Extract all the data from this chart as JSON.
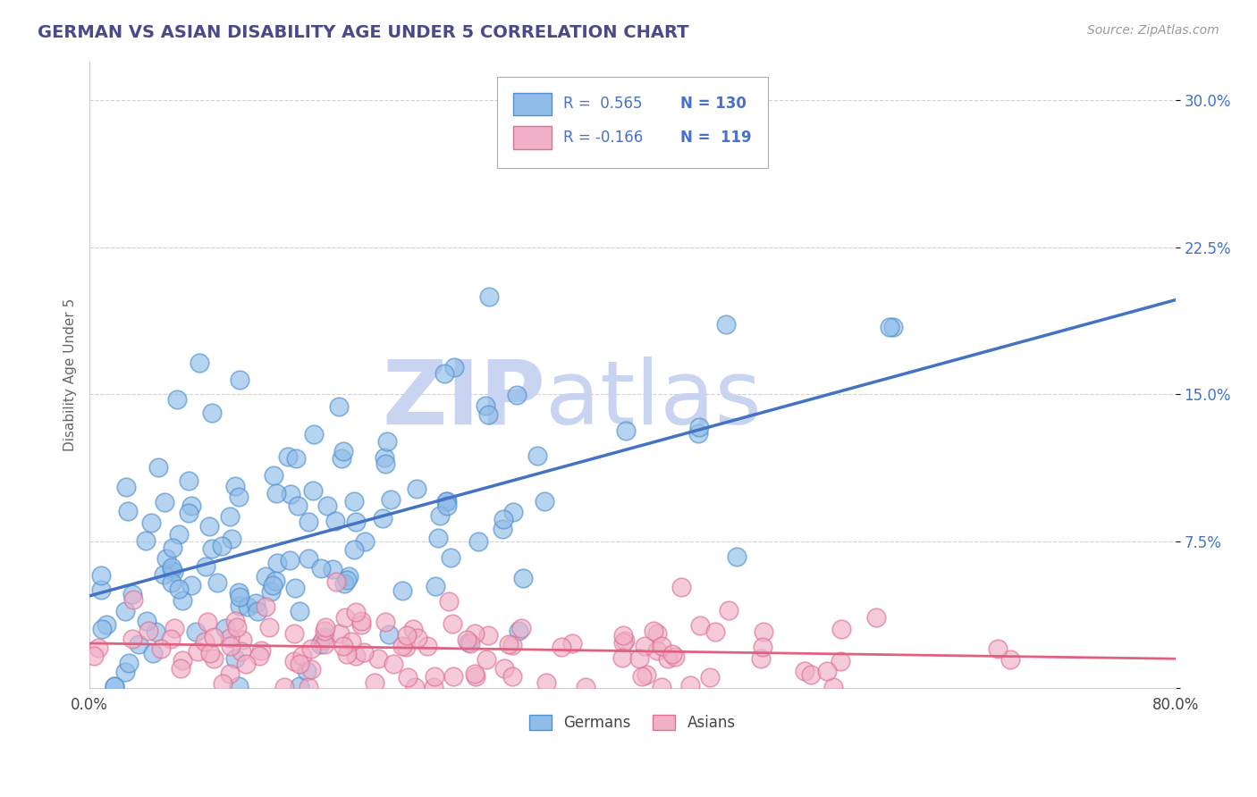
{
  "title": "GERMAN VS ASIAN DISABILITY AGE UNDER 5 CORRELATION CHART",
  "source_text": "Source: ZipAtlas.com",
  "ylabel": "Disability Age Under 5",
  "xlabel": "",
  "xlim": [
    0.0,
    0.8
  ],
  "ylim": [
    0.0,
    0.32
  ],
  "xticks": [
    0.0,
    0.1,
    0.2,
    0.3,
    0.4,
    0.5,
    0.6,
    0.7,
    0.8
  ],
  "xticklabels": [
    "0.0%",
    "",
    "",
    "",
    "",
    "",
    "",
    "",
    "80.0%"
  ],
  "yticks": [
    0.0,
    0.075,
    0.15,
    0.225,
    0.3
  ],
  "yticklabels": [
    "",
    "7.5%",
    "15.0%",
    "22.5%",
    "30.0%"
  ],
  "grid_color": "#cccccc",
  "background_color": "#ffffff",
  "title_color": "#4a4a8a",
  "title_fontsize": 14,
  "watermark_zip": "ZIP",
  "watermark_atlas": "atlas",
  "watermark_color": "#c8d4f0",
  "legend_color": "#4a70c8",
  "legend_R1": "R =  0.565",
  "legend_N1": "N = 130",
  "legend_R2": "R = -0.166",
  "legend_N2": "N =  119",
  "legend_label1": "Germans",
  "legend_label2": "Asians",
  "german_color": "#90bce8",
  "asian_color": "#f0b0c8",
  "german_edge_color": "#5090d0",
  "asian_edge_color": "#e07090",
  "german_line_color": "#4472c4",
  "asian_line_color": "#e06080",
  "ytick_color": "#4472c4",
  "R_german": 0.565,
  "N_german": 130,
  "R_asian": -0.166,
  "N_asian": 119,
  "seed": 42
}
